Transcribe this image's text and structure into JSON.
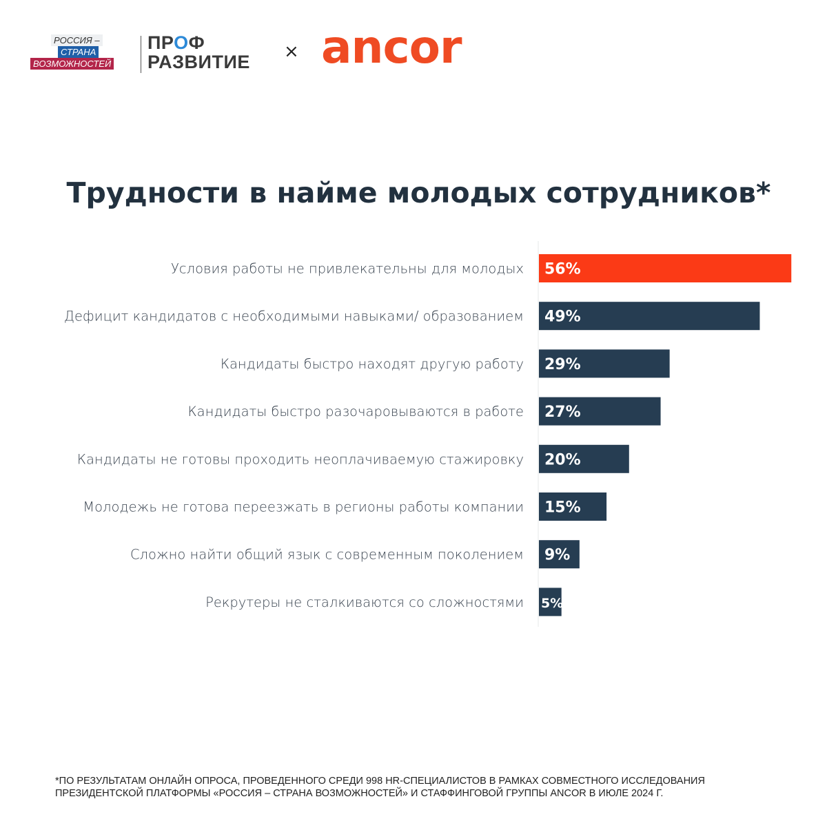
{
  "logos": {
    "russia_line1": "РОССИЯ –",
    "russia_line2": "СТРАНА",
    "russia_line3": "ВОЗМОЖНОСТЕЙ",
    "prof_line1_a": "ПР",
    "prof_line1_b": "О",
    "prof_line1_c": "Ф",
    "prof_line2": "РАЗВИТИЕ",
    "separator": "×",
    "ancor": "ancor"
  },
  "chart_data": {
    "type": "bar",
    "orientation": "horizontal",
    "title": "Трудности в найме молодых сотрудников*",
    "categories": [
      "Условия работы не привлекательны для молодых",
      "Дефицит кандидатов с необходимыми навыками/ образованием",
      "Кандидаты быстро находят другую работу",
      "Кандидаты быстро разочаровываются в работе",
      "Кандидаты не готовы проходить неоплачиваемую стажировку",
      "Молодежь не готова переезжать в регионы работы компании",
      "Сложно найти общий язык с современным поколением",
      "Рекрутеры не сталкиваются со сложностями"
    ],
    "values": [
      56,
      49,
      29,
      27,
      20,
      15,
      9,
      5
    ],
    "data_labels": [
      "56%",
      "49%",
      "29%",
      "27%",
      "20%",
      "15%",
      "9%",
      "5%"
    ],
    "unit": "%",
    "colors": {
      "highlight": "#fb3a16",
      "default": "#263d52"
    },
    "grid": false,
    "xlim": [
      0,
      56
    ]
  },
  "footnote": {
    "line1": "*ПО РЕЗУЛЬТАТАМ ОНЛАЙН ОПРОСА, ПРОВЕДЕННОГО СРЕДИ 998 HR-СПЕЦИАЛИСТОВ В РАМКАХ СОВМЕСТНОГО ИССЛЕДОВАНИЯ",
    "line2": "ПРЕЗИДЕНТСКОЙ ПЛАТФОРМЫ «РОССИЯ – СТРАНА ВОЗМОЖНОСТЕЙ» И СТАФФИНГОВОЙ ГРУППЫ ANCOR В ИЮЛЕ 2024 Г."
  }
}
